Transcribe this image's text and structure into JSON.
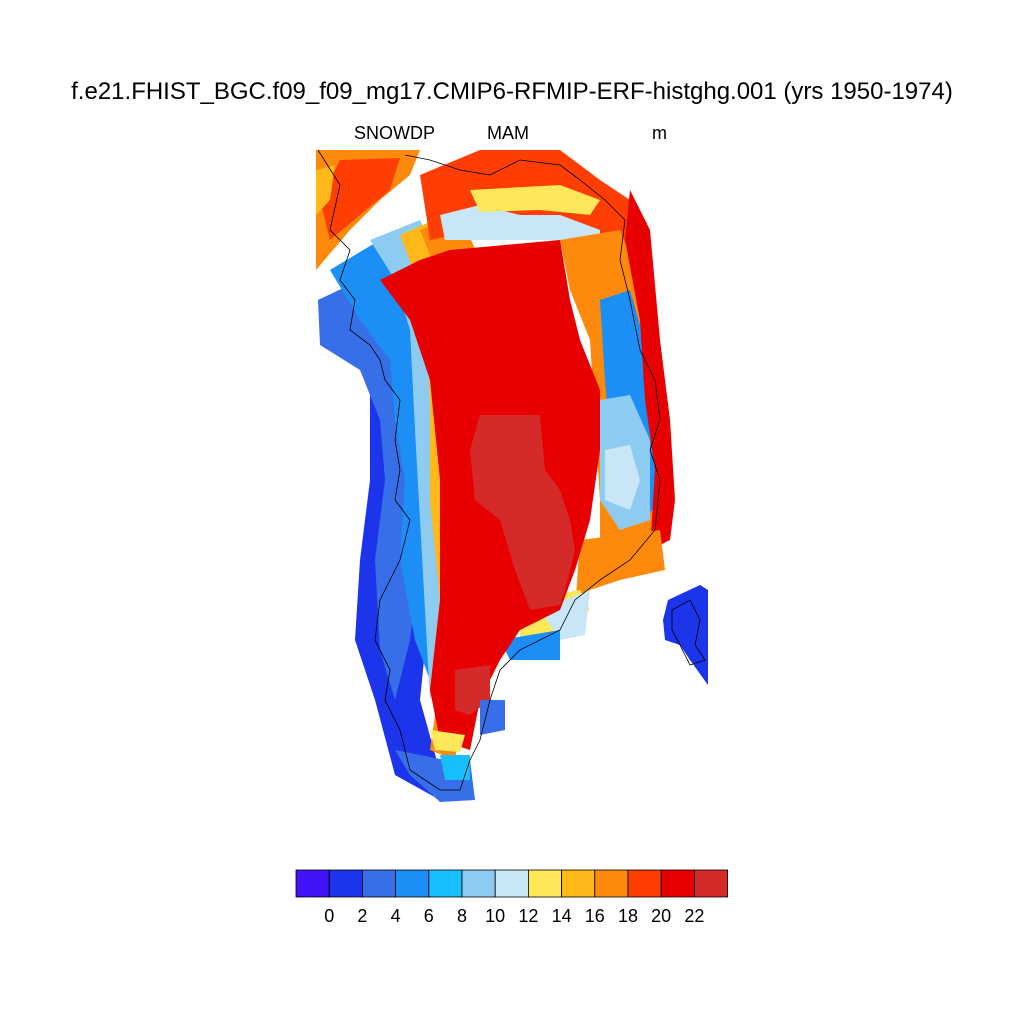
{
  "title": "f.e21.FHIST_BGC.f09_f09_mg17.CMIP6-RFMIP-ERF-histghg.001 (yrs 1950-1974)",
  "variable": "SNOWDP",
  "season": "MAM",
  "units": "m",
  "colorbar": {
    "colors": [
      "#4213f7",
      "#1c34ea",
      "#376fe8",
      "#1b8ff6",
      "#16c0fc",
      "#8ecbf0",
      "#c8e6f6",
      "#fee759",
      "#feb81a",
      "#fe8a0d",
      "#fe3e03",
      "#e80000",
      "#d42a2a"
    ],
    "labels": [
      "0",
      "2",
      "4",
      "6",
      "8",
      "10",
      "12",
      "14",
      "16",
      "18",
      "20",
      "22"
    ]
  },
  "map": {
    "region": "Greenland",
    "field": "snow depth",
    "missing_color": "#ffffff"
  }
}
